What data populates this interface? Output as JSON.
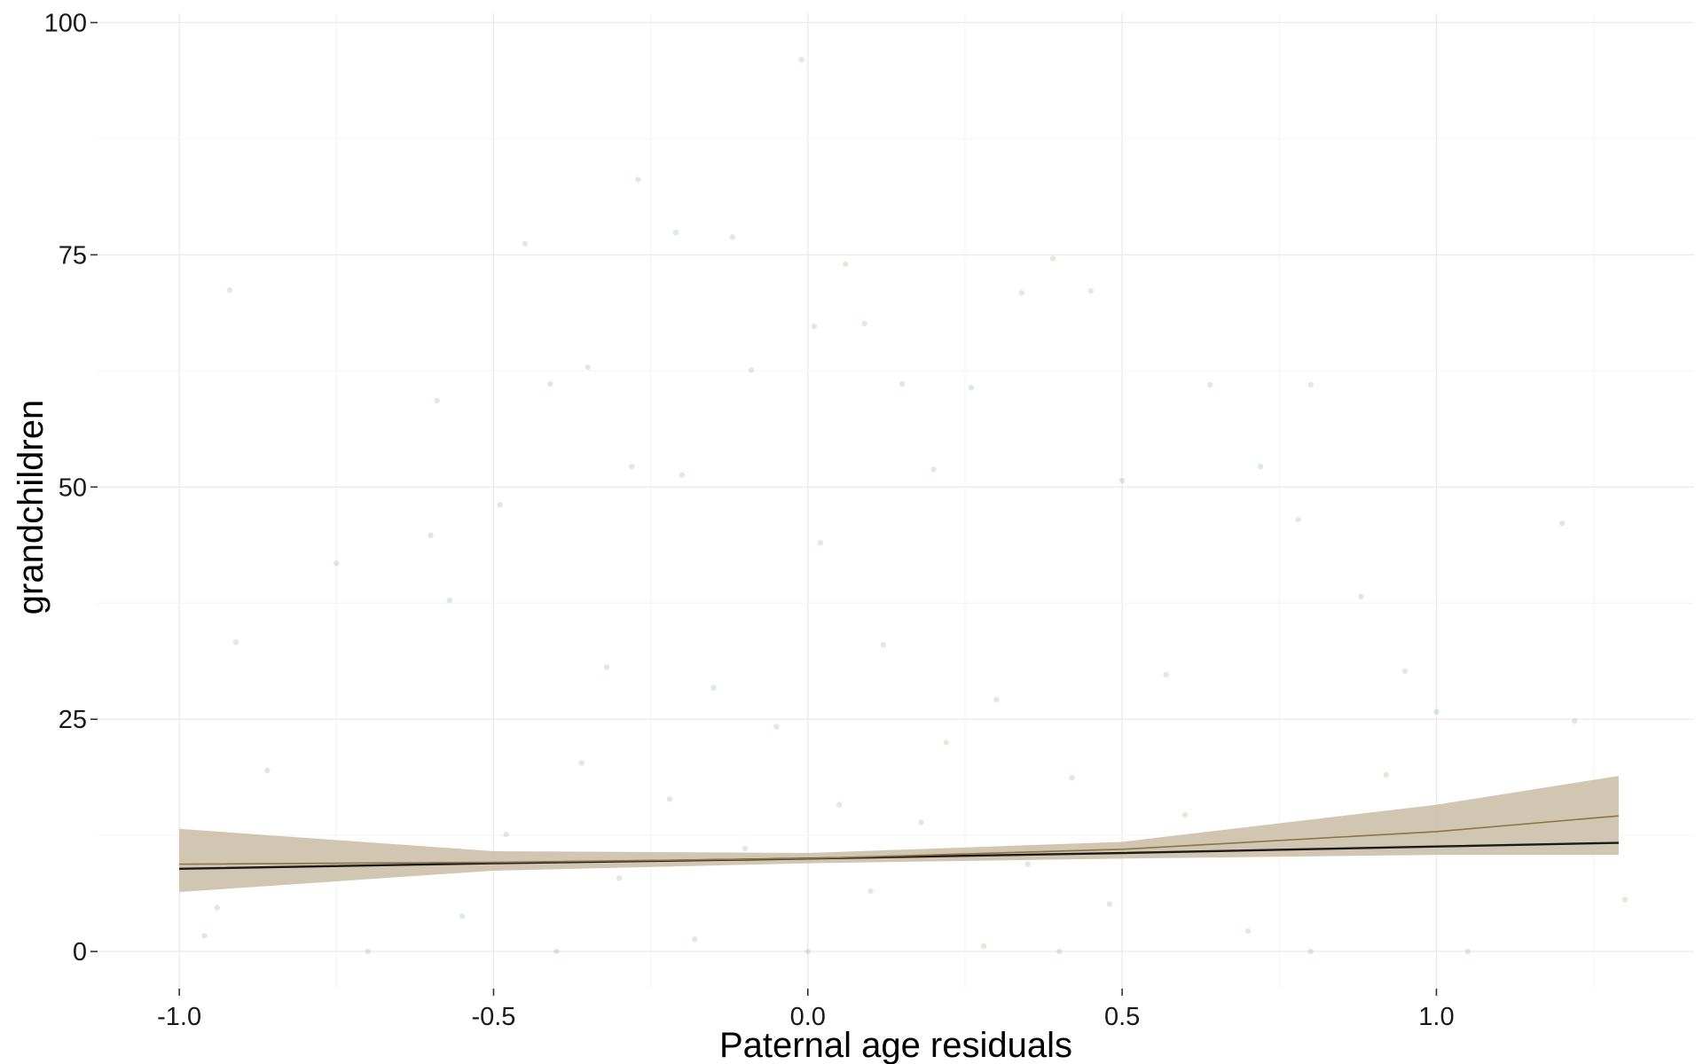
{
  "chart_data": {
    "type": "scatter",
    "title": "",
    "xlabel": "Paternal age residuals",
    "ylabel": "grandchildren",
    "xlim": [
      -1.13,
      1.41
    ],
    "ylim": [
      -4,
      101
    ],
    "x_ticks": [
      -1.0,
      -0.5,
      0.0,
      0.5,
      1.0
    ],
    "x_tick_labels": [
      "-1.0",
      "-0.5",
      "0.0",
      "0.5",
      "1.0"
    ],
    "y_ticks": [
      0,
      25,
      50,
      75,
      100
    ],
    "y_tick_labels": [
      "0",
      "25",
      "50",
      "75",
      "100"
    ],
    "grid": true,
    "legend": "none",
    "colors": {
      "points": "#6a9f6a",
      "ribbon": "#c9bca3",
      "ribbon_inner": "#b9b9c6",
      "fit_line": "#1a1a1a",
      "fit_line_curved": "#8a7548",
      "grid": "#ebebeb"
    },
    "points": [
      {
        "x": -0.92,
        "y": 71.2
      },
      {
        "x": -0.59,
        "y": 59.3
      },
      {
        "x": -0.45,
        "y": 76.2
      },
      {
        "x": -0.21,
        "y": 77.4
      },
      {
        "x": -0.12,
        "y": 76.9
      },
      {
        "x": -0.27,
        "y": 83.1
      },
      {
        "x": -0.01,
        "y": 96.0
      },
      {
        "x": 0.01,
        "y": 67.3
      },
      {
        "x": 0.06,
        "y": 74.0
      },
      {
        "x": 0.09,
        "y": 67.6
      },
      {
        "x": 0.34,
        "y": 70.9
      },
      {
        "x": 0.39,
        "y": 74.6
      },
      {
        "x": 0.45,
        "y": 71.1
      },
      {
        "x": -0.09,
        "y": 62.6
      },
      {
        "x": -0.35,
        "y": 62.9
      },
      {
        "x": -0.41,
        "y": 61.1
      },
      {
        "x": 0.15,
        "y": 61.1
      },
      {
        "x": 0.26,
        "y": 60.7
      },
      {
        "x": 0.64,
        "y": 61.0
      },
      {
        "x": 0.8,
        "y": 61.0
      },
      {
        "x": -0.28,
        "y": 52.2
      },
      {
        "x": -0.2,
        "y": 51.3
      },
      {
        "x": 0.2,
        "y": 51.9
      },
      {
        "x": 0.5,
        "y": 50.7
      },
      {
        "x": 0.72,
        "y": 52.2
      },
      {
        "x": -0.49,
        "y": 48.1
      },
      {
        "x": 0.02,
        "y": 44.0
      },
      {
        "x": -0.6,
        "y": 44.8
      },
      {
        "x": 0.88,
        "y": 38.2
      },
      {
        "x": 1.2,
        "y": 46.1
      },
      {
        "x": 0.78,
        "y": 46.5
      },
      {
        "x": -0.75,
        "y": 41.8
      },
      {
        "x": -0.91,
        "y": 33.3
      },
      {
        "x": -0.57,
        "y": 37.8
      },
      {
        "x": -0.32,
        "y": 30.6
      },
      {
        "x": 0.57,
        "y": 29.8
      },
      {
        "x": 0.95,
        "y": 30.2
      },
      {
        "x": -0.86,
        "y": 19.5
      },
      {
        "x": 0.92,
        "y": 19.0
      },
      {
        "x": 1.22,
        "y": 24.8
      },
      {
        "x": 1.3,
        "y": 5.6
      },
      {
        "x": -0.96,
        "y": 1.7
      },
      {
        "x": -0.94,
        "y": 4.7
      },
      {
        "x": 1.0,
        "y": 25.8
      },
      {
        "x": 0.12,
        "y": 33.0
      },
      {
        "x": -0.15,
        "y": 28.4
      },
      {
        "x": 0.3,
        "y": 27.1
      },
      {
        "x": -0.05,
        "y": 24.2
      },
      {
        "x": 0.22,
        "y": 22.5
      },
      {
        "x": 0.42,
        "y": 18.7
      },
      {
        "x": -0.36,
        "y": 20.3
      },
      {
        "x": -0.22,
        "y": 16.4
      },
      {
        "x": 0.05,
        "y": 15.8
      },
      {
        "x": 0.18,
        "y": 13.9
      },
      {
        "x": 0.6,
        "y": 14.7
      },
      {
        "x": -0.48,
        "y": 12.6
      },
      {
        "x": -0.1,
        "y": 11.1
      },
      {
        "x": 0.35,
        "y": 9.4
      },
      {
        "x": -0.3,
        "y": 7.9
      },
      {
        "x": 0.1,
        "y": 6.5
      },
      {
        "x": 0.48,
        "y": 5.1
      },
      {
        "x": -0.55,
        "y": 3.8
      },
      {
        "x": 0.7,
        "y": 2.2
      },
      {
        "x": -0.18,
        "y": 1.3
      },
      {
        "x": 0.28,
        "y": 0.6
      },
      {
        "x": -0.4,
        "y": 0.0
      },
      {
        "x": 0.0,
        "y": 0.0
      },
      {
        "x": 0.4,
        "y": 0.0
      },
      {
        "x": -0.7,
        "y": 0.0
      },
      {
        "x": 0.8,
        "y": 0.0
      },
      {
        "x": 1.05,
        "y": 0.0
      }
    ],
    "series": [
      {
        "type": "line",
        "x": [
          -1.0,
          -0.5,
          0.0,
          0.5,
          1.0,
          1.29
        ],
        "y": [
          8.9,
          9.5,
          10.0,
          10.6,
          11.3,
          11.7
        ]
      },
      {
        "type": "line",
        "x": [
          -1.0,
          -0.5,
          0.0,
          0.5,
          1.0,
          1.29
        ],
        "y": [
          9.4,
          9.6,
          10.0,
          11.0,
          12.9,
          14.6
        ]
      },
      {
        "type": "area",
        "x": [
          -1.0,
          -0.5,
          0.0,
          0.5,
          1.0,
          1.29
        ],
        "lower": [
          6.4,
          8.7,
          9.5,
          10.0,
          10.4,
          10.4
        ],
        "upper": [
          13.2,
          10.8,
          10.6,
          11.8,
          15.8,
          18.9
        ]
      }
    ]
  }
}
